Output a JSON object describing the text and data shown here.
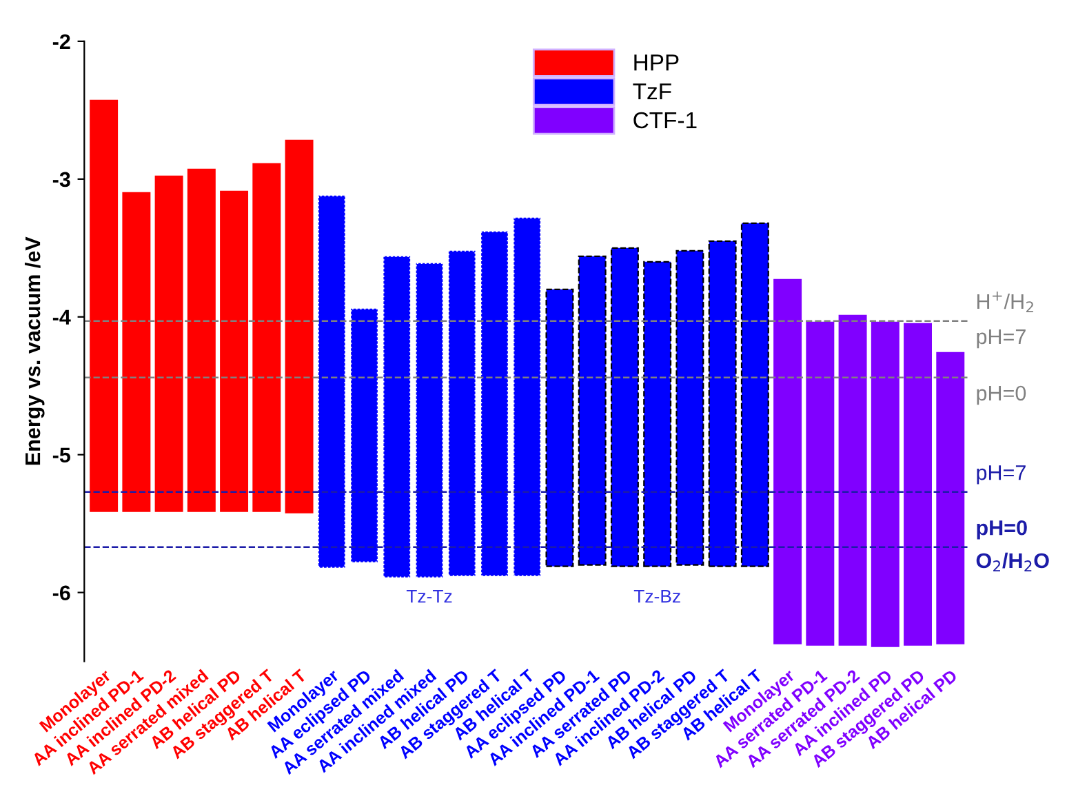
{
  "chart_data": {
    "type": "bar",
    "ylabel": "Energy vs. vacuum /eV",
    "categories": [
      "Monolayer",
      "AA inclined PD-1",
      "AA inclined PD-2",
      "AA serrated mixed",
      "AB helical PD",
      "AB staggered T",
      "AB helical T",
      "Monolayer",
      "AA eclipsed PD",
      "AA serrated mixed",
      "AA inclined mixed",
      "AB helical PD",
      "AB staggered T",
      "AB helical T",
      "AA eclipsed PD",
      "AA inclined PD-1",
      "AA serrated PD",
      "AA inclined PD-2",
      "AB helical PD",
      "AB staggered T",
      "AB helical T",
      "Monolayer",
      "AA serrated PD-1",
      "AA serrated PD-2",
      "AA inclined PD",
      "AB staggered PD",
      "AB helical PD"
    ],
    "series": [
      {
        "name": "HPP",
        "color": "#ff0000",
        "line_style": "solid",
        "values": [
          2.98,
          2.31,
          2.43,
          2.48,
          2.32,
          2.52,
          2.7,
          null,
          null,
          null,
          null,
          null,
          null,
          null,
          null,
          null,
          null,
          null,
          null,
          null,
          null,
          null,
          null,
          null,
          null,
          null,
          null
        ],
        "base": [
          -5.41,
          -5.41,
          -5.41,
          -5.41,
          -5.41,
          -5.41,
          -5.42,
          null,
          null,
          null,
          null,
          null,
          null,
          null,
          null,
          null,
          null,
          null,
          null,
          null,
          null,
          null,
          null,
          null,
          null,
          null,
          null
        ]
      },
      {
        "name": "TzF",
        "color": "#0000ff",
        "line_style": "dotted",
        "values": [
          null,
          null,
          null,
          null,
          null,
          null,
          null,
          2.7,
          1.84,
          2.33,
          2.28,
          2.36,
          2.5,
          2.6,
          null,
          null,
          null,
          null,
          null,
          null,
          null,
          null,
          null,
          null,
          null,
          null,
          null
        ],
        "base": [
          null,
          null,
          null,
          null,
          null,
          null,
          null,
          -5.82,
          -5.78,
          -5.89,
          -5.89,
          -5.88,
          -5.88,
          -5.88,
          null,
          null,
          null,
          null,
          null,
          null,
          null,
          null,
          null,
          null,
          null,
          null,
          null
        ]
      },
      {
        "color": "#0000ff",
        "line_style": "dashed",
        "values": [
          null,
          null,
          null,
          null,
          null,
          null,
          null,
          null,
          null,
          null,
          null,
          null,
          null,
          null,
          2.01,
          2.24,
          2.31,
          2.21,
          2.28,
          2.36,
          2.49,
          null,
          null,
          null,
          null,
          null,
          null
        ],
        "base": [
          null,
          null,
          null,
          null,
          null,
          null,
          null,
          null,
          null,
          null,
          null,
          null,
          null,
          null,
          -5.81,
          -5.8,
          -5.81,
          -5.81,
          -5.8,
          -5.81,
          -5.81,
          null,
          null,
          null,
          null,
          null,
          null
        ]
      },
      {
        "name": "CTF-1",
        "color": "#8000ff",
        "line_style": "solid",
        "values": [
          null,
          null,
          null,
          null,
          null,
          null,
          null,
          null,
          null,
          null,
          null,
          null,
          null,
          null,
          null,
          null,
          null,
          null,
          null,
          null,
          null,
          2.64,
          2.34,
          2.39,
          2.35,
          2.33,
          2.11
        ],
        "base": [
          null,
          null,
          null,
          null,
          null,
          null,
          null,
          null,
          null,
          null,
          null,
          null,
          null,
          null,
          null,
          null,
          null,
          null,
          null,
          null,
          null,
          -6.37,
          -6.38,
          -6.38,
          -6.39,
          -6.38,
          -6.37
        ]
      }
    ],
    "ylim": [
      -6.5,
      -2
    ],
    "yticks": [
      {
        "value": -2,
        "label": "-2"
      },
      {
        "value": -3,
        "label": "-3"
      },
      {
        "value": -4,
        "label": "-4"
      },
      {
        "value": -5,
        "label": "-5"
      },
      {
        "value": -6,
        "label": "-6"
      }
    ],
    "ref_lines": [
      {
        "axis": "y",
        "value": -4.03,
        "color": "#808080",
        "line_style": "dashed"
      },
      {
        "axis": "y",
        "value": -4.44,
        "color": "#808080",
        "line_style": "dashed"
      },
      {
        "axis": "y",
        "value": -5.27,
        "color": "#1c1ca8",
        "line_style": "dashed"
      },
      {
        "axis": "y",
        "value": -5.67,
        "color": "#1c1ca8",
        "line_style": "dashed"
      }
    ],
    "annotations": [
      "H$^{+}$/H$_{2}$",
      "pH=7",
      "pH=0",
      "pH=7",
      "pH=0",
      "O$_{2}$/H$_{2}$O",
      "Tz-Tz",
      "Tz-Bz"
    ],
    "legend": "top",
    "grid": false
  }
}
